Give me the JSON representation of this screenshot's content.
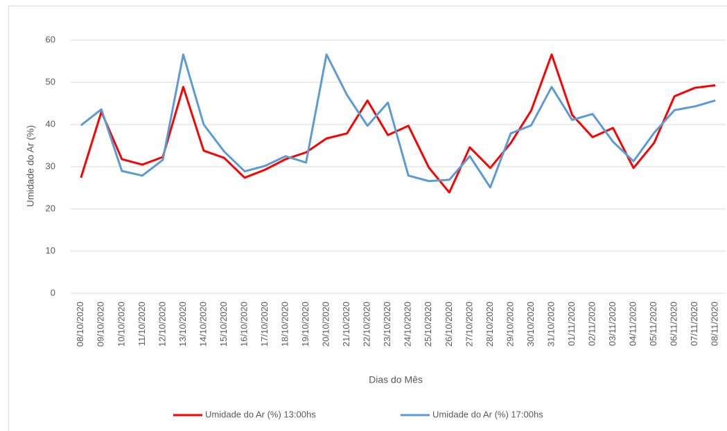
{
  "chart_data": {
    "type": "line",
    "x_label": "Dias do Mês",
    "y_label": "Umidade do Ar (%)",
    "categories": [
      "08/10/2020",
      "09/10/2020",
      "10/10/2020",
      "11/10/2020",
      "12/10/2020",
      "13/10/2020",
      "14/10/2020",
      "15/10/2020",
      "16/10/2020",
      "17/10/2020",
      "18/10/2020",
      "19/10/2020",
      "20/10/2020",
      "21/10/2020",
      "22/10/2020",
      "23/10/2020",
      "24/10/2020",
      "25/10/2020",
      "26/10/2020",
      "27/10/2020",
      "28/10/2020",
      "29/10/2020",
      "30/10/2020",
      "31/10/2020",
      "01/11/2020",
      "02/11/2020",
      "03/11/2020",
      "04/11/2020",
      "05/11/2020",
      "06/11/2020",
      "07/11/2020",
      "08/11/2020"
    ],
    "series": [
      {
        "name": "Umidade do Ar (%) 13:00hs",
        "color": "#ff0000",
        "values": [
          27.4,
          43,
          31.8,
          30.5,
          32.3,
          48.9,
          33.8,
          32.1,
          27.4,
          29.3,
          31.8,
          33.4,
          36.7,
          37.9,
          45.7,
          37.5,
          39.7,
          29.8,
          23.9,
          34.6,
          29.7,
          35.6,
          43.3,
          56.6,
          42.3,
          37,
          39.2,
          29.7,
          35.6,
          46.7,
          48.7,
          49.3
        ]
      },
      {
        "name": "Umidade do Ar (%) 17:00hs",
        "color": "#5b9bd5",
        "values": [
          39.8,
          43.6,
          29,
          27.9,
          31.6,
          56.6,
          40,
          33.6,
          28.9,
          30.2,
          32.5,
          31,
          56.6,
          47,
          39.7,
          45.2,
          27.9,
          26.6,
          26.9,
          32.5,
          25.1,
          37.9,
          39.8,
          48.9,
          41.1,
          42.5,
          35.9,
          31.3,
          38,
          43.4,
          44.3,
          45.7
        ]
      }
    ],
    "ylim": [
      0,
      60
    ],
    "yticks": [
      0,
      10,
      20,
      30,
      40,
      50,
      60
    ],
    "grid": true,
    "legend": "bottom"
  }
}
